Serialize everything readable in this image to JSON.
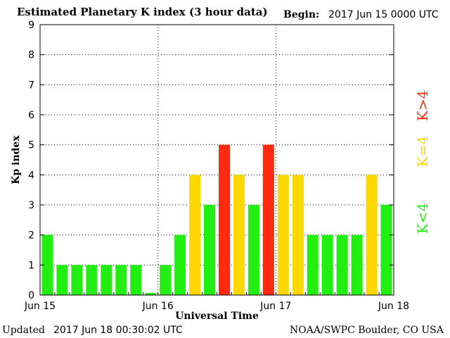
{
  "header": {
    "title": "Estimated Planetary K index (3 hour data)",
    "begin_label": "Begin:",
    "begin_value": "2017 Jun 15 0000 UTC"
  },
  "footer": {
    "updated_label": "Updated",
    "updated_value": "2017 Jun 18 00:30:02 UTC",
    "source": "NOAA/SWPC Boulder, CO USA"
  },
  "legend": [
    {
      "label": "K<4",
      "color": "#22ee11"
    },
    {
      "label": "K=4",
      "color": "#ffd700"
    },
    {
      "label": "K>4",
      "color": "#ff2a10"
    }
  ],
  "chart_data": {
    "type": "bar",
    "title": "Estimated Planetary K index (3 hour data)",
    "xlabel": "Universal Time",
    "ylabel": "Kp index",
    "ylim": [
      0,
      9
    ],
    "yticks": [
      "0",
      "1",
      "2",
      "3",
      "4",
      "5",
      "6",
      "7",
      "8",
      "9"
    ],
    "xticks": [
      "Jun 15",
      "Jun 16",
      "Jun 17",
      "Jun 18"
    ],
    "grid": true,
    "color_thresholds": {
      "below_4": "#22ee11",
      "equal_4": "#ffd700",
      "above_4": "#ff2a10"
    },
    "values": [
      2,
      1,
      1,
      1,
      1,
      1,
      1,
      0.07,
      1,
      2,
      4,
      3,
      5,
      4,
      3,
      5,
      4,
      4,
      2,
      2,
      2,
      2,
      4,
      3
    ]
  }
}
